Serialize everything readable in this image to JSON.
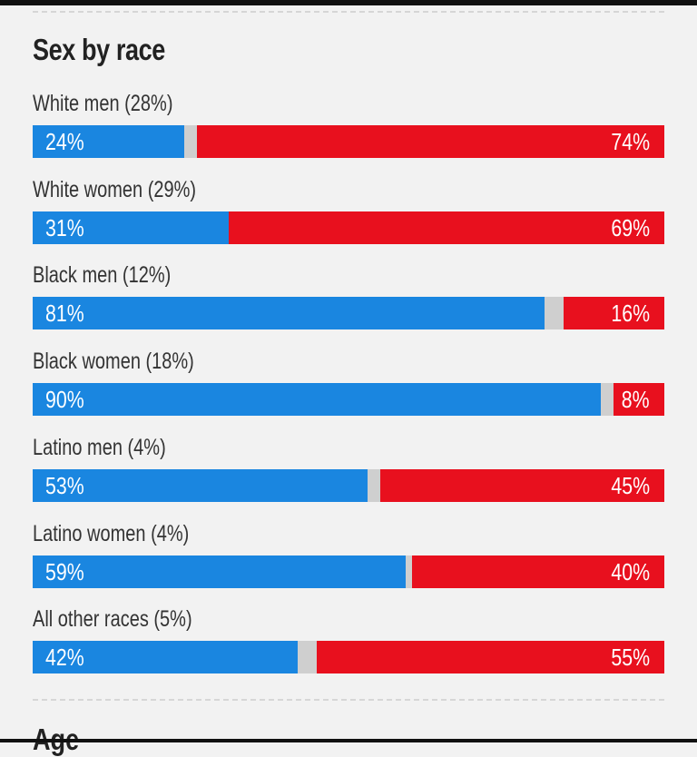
{
  "title": "Sex by race",
  "next_section_title": "Age",
  "colors": {
    "dem": "#1a86e0",
    "rep": "#e8101e",
    "other": "#cfcfcf"
  },
  "chart_data": {
    "type": "bar",
    "orientation": "horizontal-stacked",
    "title": "Sex by race",
    "categories": [
      "White men (28%)",
      "White women (29%)",
      "Black men (12%)",
      "Black women (18%)",
      "Latino men (4%)",
      "Latino women (4%)",
      "All other races (5%)"
    ],
    "series": [
      {
        "values": [
          24,
          31,
          81,
          90,
          53,
          59,
          42
        ],
        "color": "#1a86e0"
      },
      {
        "values": [
          74,
          69,
          16,
          8,
          45,
          40,
          55
        ],
        "color": "#e8101e"
      }
    ],
    "value_labels": {
      "left": [
        "24%",
        "31%",
        "81%",
        "90%",
        "53%",
        "59%",
        "42%"
      ],
      "right": [
        "74%",
        "69%",
        "16%",
        "8%",
        "45%",
        "40%",
        "55%"
      ]
    },
    "xlim": [
      0,
      100
    ],
    "grid": false,
    "legend": "none"
  }
}
